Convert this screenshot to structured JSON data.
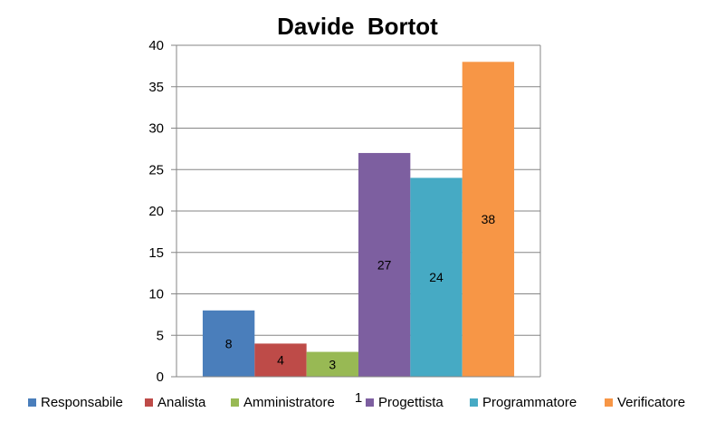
{
  "chart_data": {
    "type": "bar",
    "title": "Davide  Bortot",
    "categories": [
      "1"
    ],
    "series": [
      {
        "name": "Responsabile",
        "values": [
          8
        ],
        "color": "#4a7ebb"
      },
      {
        "name": "Analista",
        "values": [
          4
        ],
        "color": "#be4b48"
      },
      {
        "name": "Amministratore",
        "values": [
          3
        ],
        "color": "#98b954"
      },
      {
        "name": "Progettista",
        "values": [
          27
        ],
        "color": "#7d5fa0"
      },
      {
        "name": "Programmatore",
        "values": [
          24
        ],
        "color": "#46aac4"
      },
      {
        "name": "Verificatore",
        "values": [
          38
        ],
        "color": "#f79646"
      }
    ],
    "ylim": [
      0,
      40
    ],
    "yticks": [
      0,
      5,
      10,
      15,
      20,
      25,
      30,
      35,
      40
    ],
    "grid": true,
    "data_labels": true,
    "legend": "bottom"
  }
}
